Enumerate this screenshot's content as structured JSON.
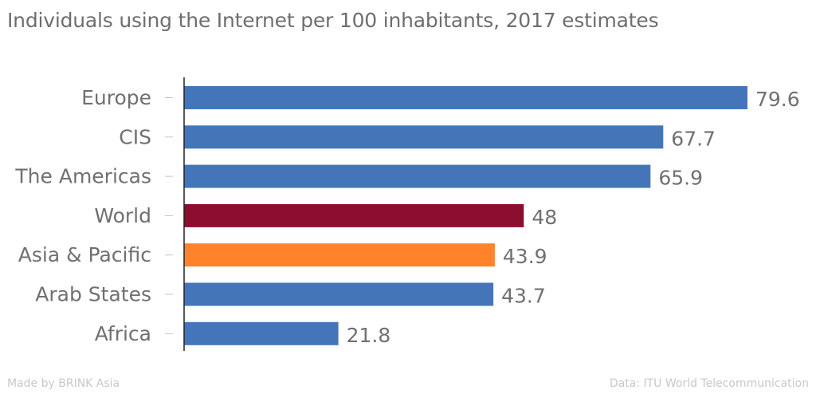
{
  "title": "Individuals using the Internet per 100 inhabitants, 2017 estimates",
  "footer": {
    "credit": "Made by BRINK Asia",
    "source": "Data: ITU World Telecommunication"
  },
  "colors": {
    "default": "#4575b9",
    "World": "#8c0d2f",
    "Asia & Pacific": "#ff832a"
  },
  "chart_data": {
    "type": "bar",
    "orientation": "horizontal",
    "title": "Individuals using the Internet per 100 inhabitants, 2017 estimates",
    "categories": [
      "Europe",
      "CIS",
      "The Americas",
      "World",
      "Asia & Pacific",
      "Arab States",
      "Africa"
    ],
    "values": [
      79.6,
      67.7,
      65.9,
      48,
      43.9,
      43.7,
      21.8
    ],
    "value_labels": [
      "79.6",
      "67.7",
      "65.9",
      "48",
      "43.9",
      "43.7",
      "21.8"
    ],
    "xlim": [
      0,
      79.6
    ],
    "grid": false,
    "legend": "none"
  }
}
